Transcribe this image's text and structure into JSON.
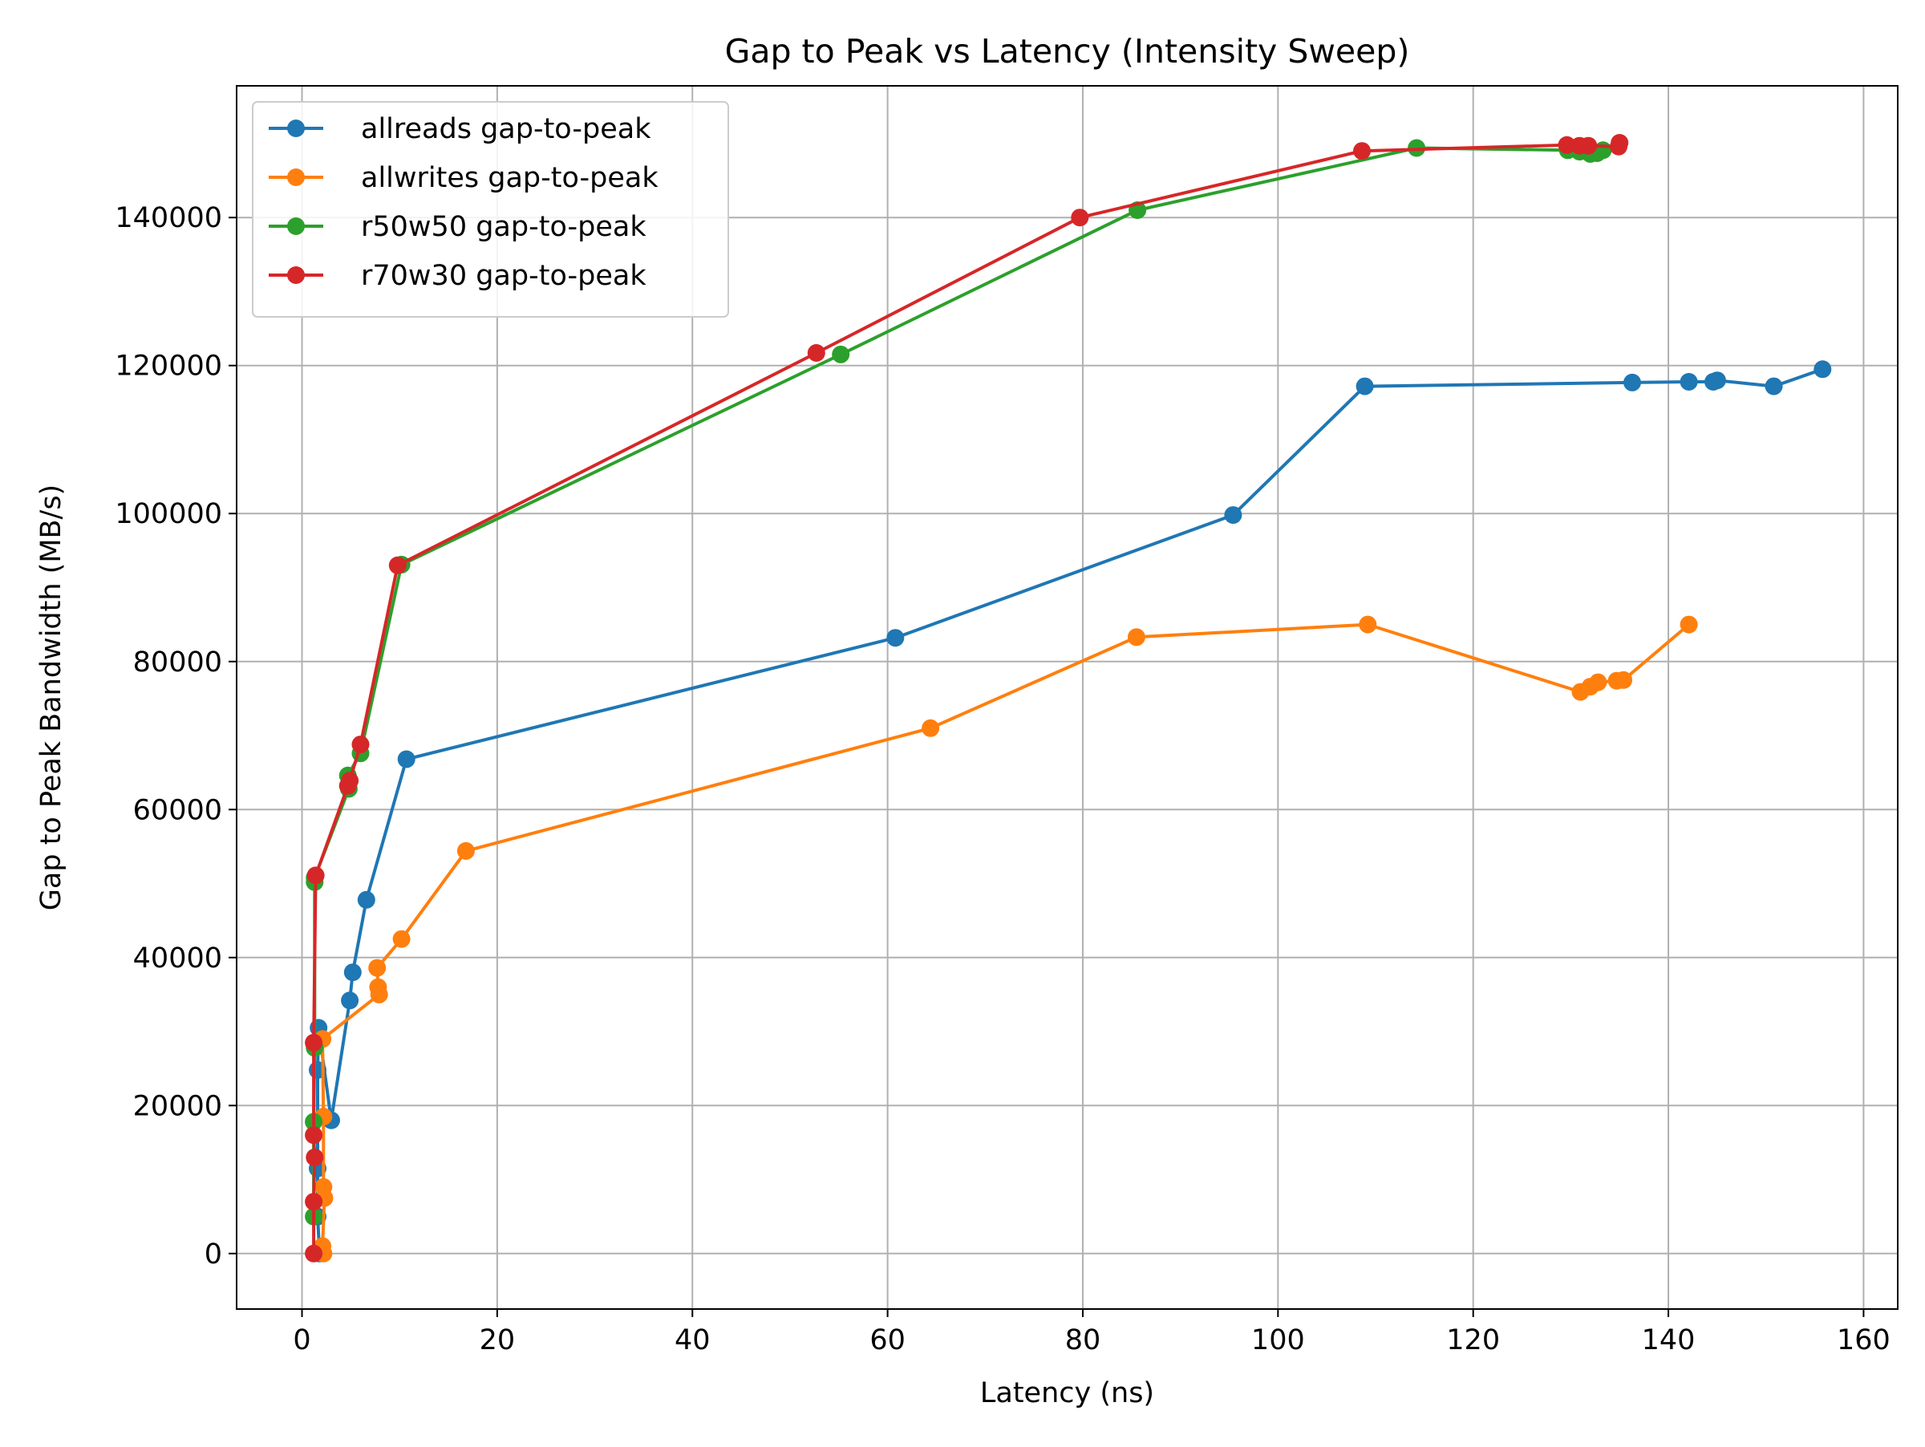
{
  "chart_data": {
    "type": "line",
    "title": "Gap to Peak vs Latency (Intensity Sweep)",
    "xlabel": "Latency (ns)",
    "ylabel": "Gap to Peak Bandwidth (MB/s)",
    "xlim": [
      -6.7,
      163.5
    ],
    "ylim": [
      -7500,
      157800
    ],
    "xticks": [
      0,
      20,
      40,
      60,
      80,
      100,
      120,
      140,
      160
    ],
    "yticks": [
      0,
      20000,
      40000,
      60000,
      80000,
      100000,
      120000,
      140000
    ],
    "grid": true,
    "legend_position": "upper-left",
    "series": [
      {
        "name": "allreads gap-to-peak",
        "color": "#1f77b4",
        "x": [
          1.8,
          1.6,
          1.6,
          1.6,
          1.7,
          3.0,
          4.9,
          5.2,
          6.6,
          10.7,
          60.8,
          95.4,
          108.9,
          136.3,
          142.1,
          144.6,
          145.0,
          150.8,
          155.8
        ],
        "y": [
          0,
          5000,
          11500,
          24800,
          30500,
          18000,
          34200,
          38000,
          47800,
          66800,
          83200,
          99800,
          117200,
          117700,
          117800,
          117800,
          118000,
          117200,
          119500
        ]
      },
      {
        "name": "allwrites gap-to-peak",
        "color": "#ff7f0e",
        "x": [
          2.2,
          2.1,
          2.3,
          2.2,
          2.2,
          2.1,
          7.9,
          7.8,
          7.7,
          10.2,
          16.8,
          64.4,
          85.5,
          109.2,
          131.0,
          132.0,
          132.8,
          134.7,
          135.4,
          142.1
        ],
        "y": [
          0,
          1000,
          7500,
          9000,
          18500,
          29000,
          35000,
          36000,
          38600,
          42500,
          54400,
          71000,
          83300,
          85000,
          75900,
          76600,
          77200,
          77400,
          77500,
          85000
        ]
      },
      {
        "name": "r50w50 gap-to-peak",
        "color": "#2ca02c",
        "x": [
          1.2,
          1.2,
          1.3,
          1.3,
          1.3,
          4.8,
          4.7,
          6.0,
          10.2,
          55.2,
          85.6,
          114.2,
          129.7,
          130.9,
          132.0,
          132.7,
          133.3
        ],
        "y": [
          5000,
          17800,
          27800,
          50200,
          50800,
          62800,
          64600,
          67600,
          93100,
          121500,
          141000,
          149400,
          149100,
          148900,
          148600,
          148700,
          149100
        ]
      },
      {
        "name": "r70w30 gap-to-peak",
        "color": "#d62728",
        "x": [
          1.2,
          1.2,
          1.3,
          1.2,
          1.2,
          1.4,
          4.7,
          4.9,
          6.0,
          9.8,
          52.7,
          79.7,
          108.6,
          129.6,
          130.9,
          131.8,
          134.9,
          135.0
        ],
        "y": [
          0,
          7000,
          13000,
          16000,
          28500,
          51100,
          63200,
          63900,
          68800,
          93000,
          121700,
          140000,
          149000,
          149800,
          149700,
          149700,
          149600,
          150100
        ]
      }
    ]
  }
}
